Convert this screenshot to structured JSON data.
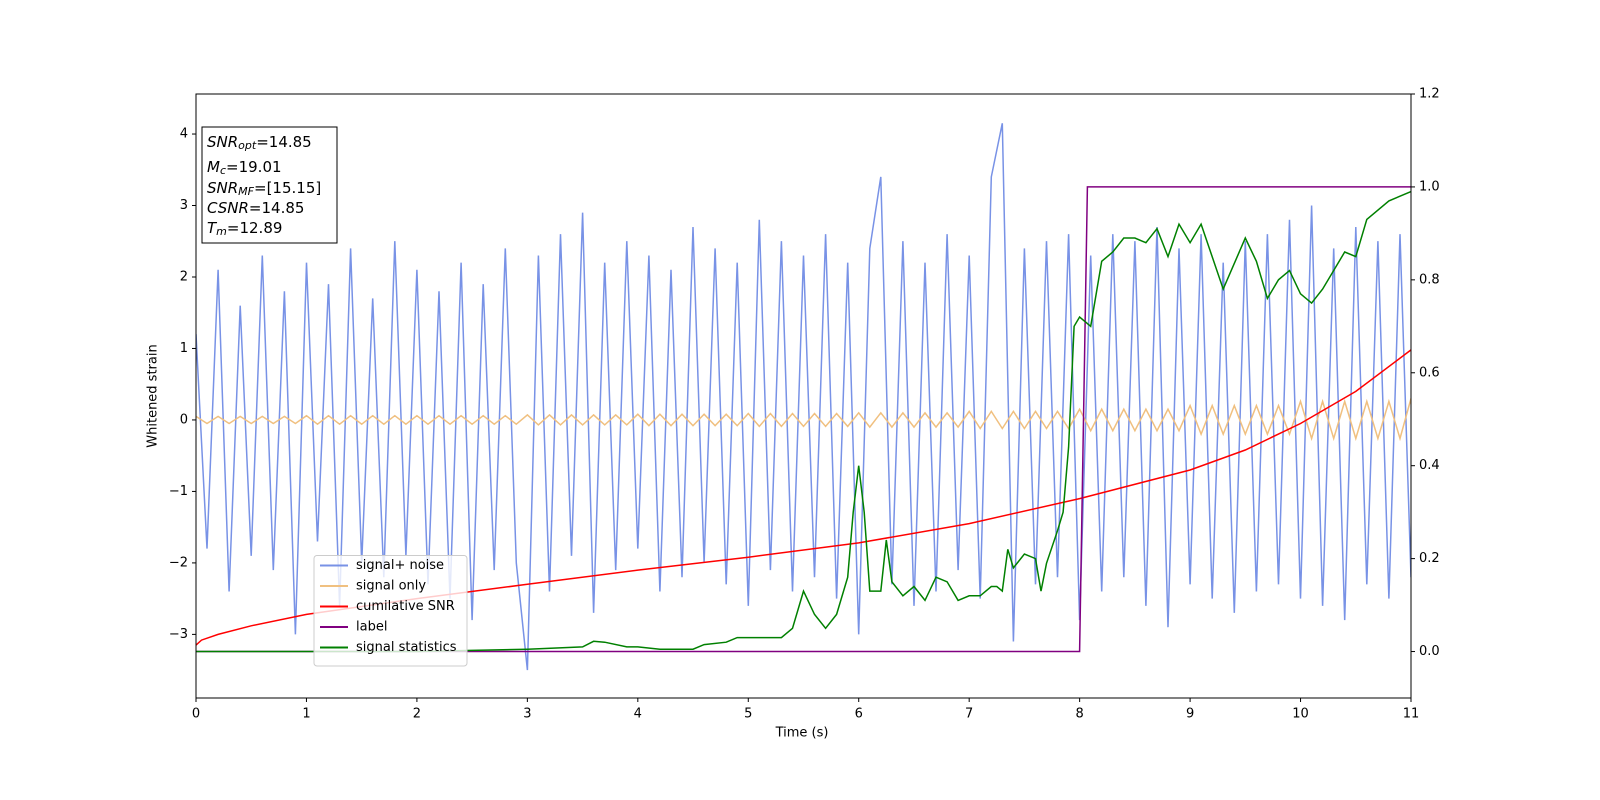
{
  "chart_data": {
    "type": "line",
    "xlabel": "Time (s)",
    "ylabel": "Whitened strain",
    "xlim": [
      0,
      11
    ],
    "ylim": [
      -3.89,
      4.56
    ],
    "y2lim": [
      -0.1,
      1.2
    ],
    "xticks": [
      0,
      1,
      2,
      3,
      4,
      5,
      6,
      7,
      8,
      9,
      10,
      11
    ],
    "yticks": [
      {
        "value": -3,
        "label": "−3"
      },
      {
        "value": -2,
        "label": "−2"
      },
      {
        "value": -1,
        "label": "−1"
      },
      0,
      1,
      2,
      3,
      4
    ],
    "y2ticks": [
      {
        "value": 0,
        "label": "0.0"
      },
      0.2,
      0.4,
      0.6,
      0.8,
      {
        "value": 1,
        "label": "1.0"
      },
      1.2
    ],
    "legend": "lower left",
    "annotations": [
      {
        "base": "SNR",
        "sub": "opt",
        "text": "=14.85"
      },
      {
        "base": "M",
        "sub": "c",
        "text": "=19.01"
      },
      {
        "base": "SNR",
        "sub": "MF",
        "text": "=[15.15]"
      },
      {
        "base": "CSNR",
        "text": "=14.85"
      },
      {
        "base": "T",
        "sub": "m",
        "text": "=12.89"
      }
    ],
    "x": [
      0,
      0.1,
      0.2,
      0.3,
      0.4,
      0.5,
      0.6,
      0.7,
      0.8,
      0.9,
      1,
      1.1,
      1.2,
      1.3,
      1.4,
      1.5,
      1.6,
      1.7,
      1.8,
      1.9,
      2,
      2.1,
      2.2,
      2.3,
      2.4,
      2.5,
      2.6,
      2.7,
      2.8,
      2.9,
      3,
      3.1,
      3.2,
      3.3,
      3.4,
      3.5,
      3.6,
      3.7,
      3.8,
      3.9,
      4,
      4.1,
      4.2,
      4.3,
      4.4,
      4.5,
      4.6,
      4.7,
      4.8,
      4.9,
      5,
      5.1,
      5.2,
      5.3,
      5.4,
      5.5,
      5.6,
      5.7,
      5.8,
      5.9,
      6,
      6.1,
      6.2,
      6.3,
      6.4,
      6.5,
      6.6,
      6.7,
      6.8,
      6.9,
      7,
      7.1,
      7.2,
      7.3,
      7.4,
      7.5,
      7.6,
      7.7,
      7.8,
      7.9,
      8,
      8.1,
      8.2,
      8.3,
      8.4,
      8.5,
      8.6,
      8.7,
      8.8,
      8.9,
      9,
      9.1,
      9.2,
      9.3,
      9.4,
      9.5,
      9.6,
      9.7,
      9.8,
      9.9,
      10,
      10.1,
      10.2,
      10.3,
      10.4,
      10.5,
      10.6,
      10.7,
      10.8,
      10.9,
      11
    ],
    "series": [
      {
        "name": "signal+ noise",
        "color": "#7892e6",
        "values": [
          1.2,
          -1.8,
          2.1,
          -2.4,
          1.6,
          -1.9,
          2.3,
          -2.1,
          1.8,
          -3.0,
          2.2,
          -1.7,
          1.9,
          -2.6,
          2.4,
          -2.0,
          1.7,
          -2.2,
          2.5,
          -1.9,
          2.1,
          -2.3,
          1.8,
          -2.5,
          2.2,
          -2.8,
          1.9,
          -2.1,
          2.4,
          -2.0,
          -3.5,
          2.3,
          -2.4,
          2.6,
          -1.9,
          2.9,
          -2.7,
          2.2,
          -2.1,
          2.5,
          -1.8,
          2.3,
          -2.4,
          2.1,
          -2.2,
          2.7,
          -2.0,
          2.4,
          -2.3,
          2.2,
          -2.6,
          2.8,
          -2.1,
          2.5,
          -2.4,
          2.3,
          -2.2,
          2.6,
          -2.5,
          2.2,
          -3.0,
          2.4,
          3.4,
          -2.3,
          2.5,
          -2.6,
          2.2,
          -2.4,
          2.6,
          -2.1,
          2.3,
          -2.5,
          3.4,
          4.15,
          -3.1,
          2.4,
          -2.3,
          2.5,
          -2.2,
          2.6,
          -2.8,
          2.3,
          -2.4,
          2.6,
          -2.2,
          2.5,
          -2.6,
          2.7,
          -2.9,
          2.4,
          -2.3,
          2.6,
          -2.5,
          2.2,
          -2.7,
          2.5,
          -2.4,
          2.6,
          -2.3,
          2.8,
          -2.5,
          3.0,
          -2.6,
          2.4,
          -2.8,
          2.7,
          -2.3,
          2.5,
          -2.5,
          2.6,
          -2.2
        ]
      },
      {
        "name": "signal only",
        "color": "#f0c080",
        "values": [
          0.05,
          -0.05,
          0.05,
          -0.05,
          0.05,
          -0.05,
          0.05,
          -0.05,
          0.05,
          -0.05,
          0.06,
          -0.06,
          0.06,
          -0.06,
          0.06,
          -0.06,
          0.06,
          -0.06,
          0.06,
          -0.06,
          0.06,
          -0.06,
          0.06,
          -0.06,
          0.06,
          -0.06,
          0.06,
          -0.06,
          0.06,
          -0.06,
          0.07,
          -0.07,
          0.07,
          -0.07,
          0.07,
          -0.07,
          0.07,
          -0.07,
          0.07,
          -0.07,
          0.08,
          -0.08,
          0.08,
          -0.08,
          0.08,
          -0.08,
          0.08,
          -0.08,
          0.08,
          -0.08,
          0.09,
          -0.09,
          0.09,
          -0.09,
          0.09,
          -0.09,
          0.09,
          -0.09,
          0.09,
          -0.09,
          0.1,
          -0.1,
          0.1,
          -0.1,
          0.1,
          -0.1,
          0.1,
          -0.1,
          0.1,
          -0.1,
          0.12,
          -0.12,
          0.12,
          -0.12,
          0.12,
          -0.12,
          0.12,
          -0.12,
          0.12,
          -0.12,
          0.15,
          -0.15,
          0.15,
          -0.15,
          0.15,
          -0.15,
          0.15,
          -0.15,
          0.15,
          -0.15,
          0.2,
          -0.2,
          0.2,
          -0.2,
          0.2,
          -0.2,
          0.2,
          -0.2,
          0.2,
          -0.2,
          0.26,
          -0.26,
          0.26,
          -0.26,
          0.26,
          -0.26,
          0.26,
          -0.26,
          0.26,
          -0.26,
          0.3
        ]
      },
      {
        "name": "cumilative SNR",
        "color": "red",
        "x": [
          0,
          0.05,
          0.2,
          0.5,
          1,
          2,
          3,
          4,
          5,
          6,
          7,
          8,
          9,
          9.5,
          10,
          10.5,
          11
        ],
        "values": [
          -3.15,
          -3.08,
          -3.0,
          -2.88,
          -2.72,
          -2.5,
          -2.3,
          -2.1,
          -1.92,
          -1.72,
          -1.45,
          -1.1,
          -0.7,
          -0.42,
          -0.05,
          0.4,
          0.98
        ]
      },
      {
        "name": "label",
        "color": "purple",
        "axis": "y2",
        "x": [
          0,
          8.0,
          8.07,
          11
        ],
        "values": [
          0,
          0,
          1,
          1
        ]
      },
      {
        "name": "signal statistics",
        "color": "green",
        "axis": "y2",
        "x": [
          0,
          1,
          2,
          3,
          3.5,
          3.6,
          3.7,
          3.9,
          4.0,
          4.2,
          4.5,
          4.6,
          4.8,
          4.9,
          5.1,
          5.3,
          5.4,
          5.5,
          5.6,
          5.7,
          5.8,
          5.9,
          5.95,
          6.0,
          6.05,
          6.1,
          6.2,
          6.25,
          6.3,
          6.4,
          6.5,
          6.6,
          6.7,
          6.8,
          6.9,
          7.0,
          7.1,
          7.2,
          7.25,
          7.3,
          7.35,
          7.4,
          7.5,
          7.6,
          7.65,
          7.7,
          7.8,
          7.85,
          7.9,
          7.95,
          8.0,
          8.1,
          8.2,
          8.3,
          8.4,
          8.5,
          8.6,
          8.7,
          8.8,
          8.9,
          9.0,
          9.1,
          9.3,
          9.5,
          9.6,
          9.7,
          9.8,
          9.9,
          10.0,
          10.1,
          10.2,
          10.4,
          10.5,
          10.6,
          10.8,
          11.0
        ],
        "values": [
          0.0,
          0.0,
          0.0,
          0.005,
          0.01,
          0.022,
          0.02,
          0.01,
          0.01,
          0.005,
          0.005,
          0.015,
          0.02,
          0.03,
          0.03,
          0.03,
          0.05,
          0.13,
          0.08,
          0.05,
          0.08,
          0.16,
          0.3,
          0.4,
          0.3,
          0.13,
          0.13,
          0.24,
          0.15,
          0.12,
          0.14,
          0.11,
          0.16,
          0.15,
          0.11,
          0.12,
          0.12,
          0.14,
          0.14,
          0.13,
          0.22,
          0.18,
          0.21,
          0.2,
          0.13,
          0.19,
          0.26,
          0.3,
          0.44,
          0.7,
          0.72,
          0.7,
          0.84,
          0.86,
          0.89,
          0.89,
          0.88,
          0.91,
          0.85,
          0.92,
          0.88,
          0.92,
          0.78,
          0.89,
          0.84,
          0.76,
          0.8,
          0.82,
          0.77,
          0.75,
          0.78,
          0.86,
          0.85,
          0.93,
          0.97,
          0.99
        ]
      }
    ]
  }
}
